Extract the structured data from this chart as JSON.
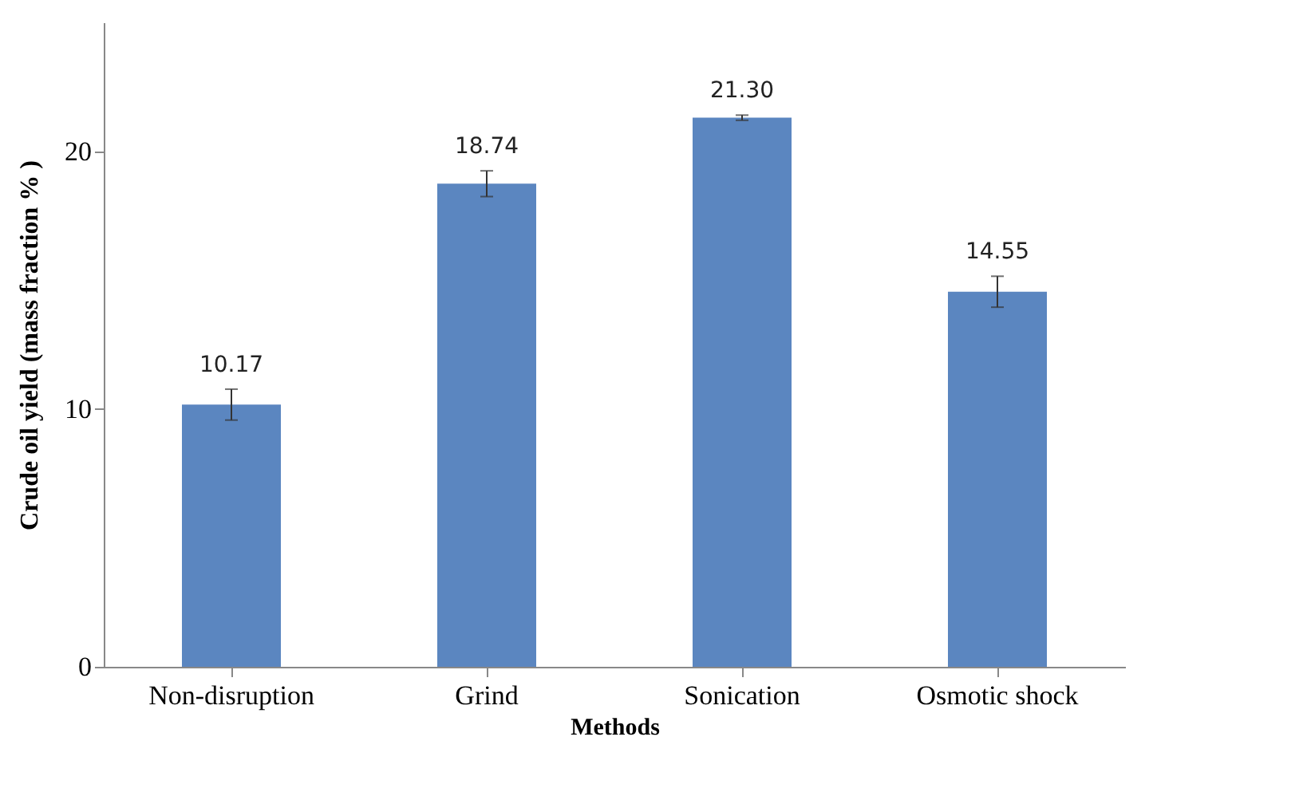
{
  "chart_data": {
    "type": "bar",
    "xlabel": "Methods",
    "ylabel": "Crude oil yield (mass fraction % )",
    "categories": [
      "Non-disruption",
      "Grind",
      "Sonication",
      "Osmotic shock"
    ],
    "values": [
      10.17,
      18.74,
      21.3,
      14.55
    ],
    "errors": [
      0.6,
      0.5,
      0.1,
      0.6
    ],
    "value_labels": [
      "10.17",
      "18.74",
      "21.30",
      "14.55"
    ],
    "color": "#5b86c0",
    "ylim": [
      0,
      25
    ],
    "yticks": [
      0,
      10,
      20
    ],
    "grid": false
  }
}
